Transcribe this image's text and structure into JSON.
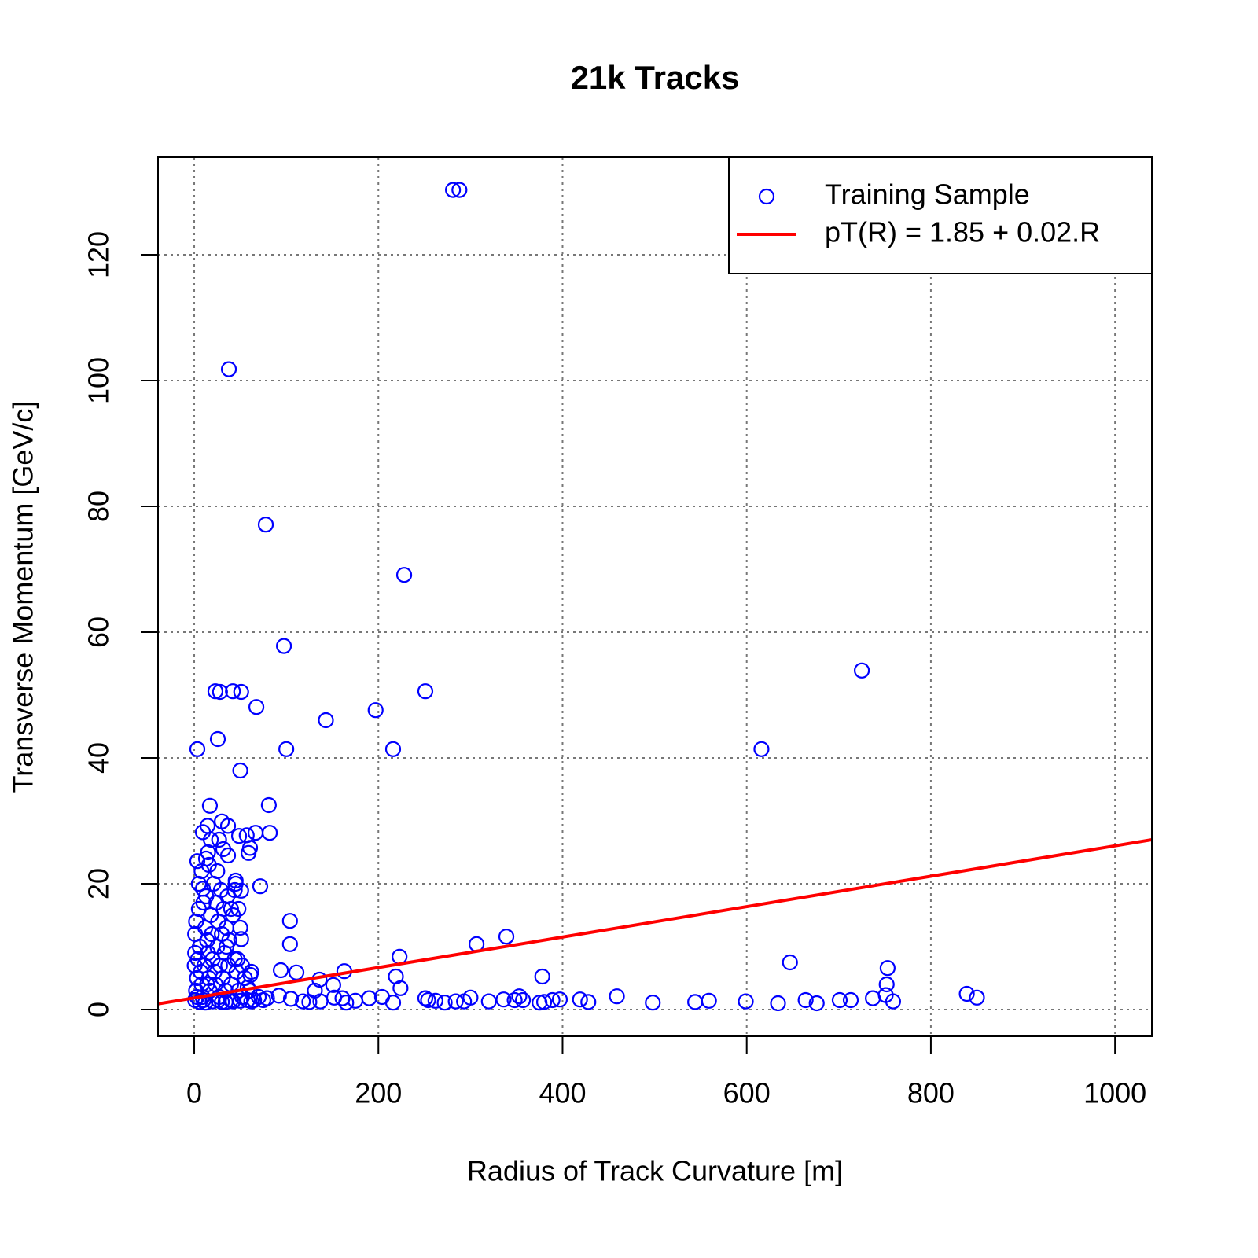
{
  "chart_data": {
    "type": "scatter",
    "title": "21k Tracks",
    "x_label": "Radius of Track Curvature [m]",
    "y_label": "Transverse Momentum [GeV/c]",
    "xlim": [
      -39.3,
      1040
    ],
    "ylim": [
      -4.25,
      135.5
    ],
    "xticks": [
      0,
      200,
      400,
      600,
      800,
      1000
    ],
    "yticks": [
      0,
      20,
      40,
      60,
      80,
      100,
      120
    ],
    "grid": true,
    "legend": "top-right",
    "series": [
      {
        "name": "Training Sample",
        "color": "#0000ff",
        "type": "scatter",
        "x": [
          281,
          288,
          37.6,
          77.7,
          228,
          97.4,
          725,
          23,
          28,
          42,
          51,
          251,
          67.5,
          197,
          143,
          25.6,
          3.4,
          100,
          216,
          616,
          50,
          17,
          81,
          9.4,
          82,
          66.6,
          14.5,
          30,
          36.7,
          48.7,
          57,
          27,
          60.6,
          59,
          31.6,
          36.7,
          3.4,
          12.8,
          16,
          71.7,
          45,
          51,
          9.4,
          104,
          104,
          306.6,
          339,
          223,
          647,
          94,
          111,
          163,
          62,
          753,
          378,
          219,
          224,
          136,
          151,
          752,
          131,
          839,
          850,
          459,
          419,
          397,
          389,
          357,
          353,
          348,
          336,
          320,
          300,
          293,
          284,
          272,
          262,
          251,
          254,
          216,
          204,
          190,
          175,
          165,
          161,
          152,
          137,
          125,
          118,
          105,
          92,
          79,
          498,
          544,
          559,
          599,
          634,
          664,
          676,
          701,
          713,
          737,
          759,
          751,
          428,
          375,
          380,
          2,
          3,
          4,
          1,
          2,
          5,
          6,
          7,
          8,
          9,
          10,
          11,
          12,
          13,
          14,
          15,
          16,
          17,
          18,
          19,
          20,
          21,
          22,
          23,
          24,
          25,
          26,
          27,
          28,
          29,
          30,
          31,
          32,
          33,
          34,
          35,
          36,
          37,
          38,
          40,
          42,
          44,
          45,
          46,
          48,
          50,
          52,
          55,
          58,
          60,
          62,
          65,
          70,
          75,
          1,
          3,
          6,
          12,
          20,
          30,
          40,
          50,
          5,
          8,
          15,
          0.5,
          1,
          10,
          25,
          18,
          40,
          35,
          44,
          51,
          48,
          47,
          58,
          52,
          61,
          26,
          34,
          42,
          14
        ],
        "values": [
          130.3,
          130.3,
          101.8,
          77.1,
          69.1,
          57.8,
          53.9,
          50.6,
          50.5,
          50.6,
          50.5,
          50.6,
          48.1,
          47.6,
          46,
          43,
          41.4,
          41.4,
          41.4,
          41.4,
          38,
          32.4,
          32.5,
          28.2,
          28.1,
          28.1,
          29.2,
          29.9,
          29.2,
          27.6,
          27.7,
          27,
          25.7,
          24.9,
          25.5,
          24.5,
          23.6,
          24,
          23,
          19.6,
          20.5,
          18.9,
          19.2,
          14.1,
          10.4,
          10.4,
          11.6,
          8.4,
          7.5,
          6.25,
          5.9,
          6.1,
          6,
          6.6,
          5.25,
          5.25,
          3.4,
          4.75,
          3.9,
          4,
          3,
          2.5,
          1.9,
          2.1,
          1.6,
          1.6,
          1.5,
          1.5,
          2.1,
          1.5,
          1.6,
          1.3,
          1.9,
          1.3,
          1.3,
          1.1,
          1.4,
          1.8,
          1.5,
          1.1,
          2,
          1.8,
          1.4,
          1.1,
          1.8,
          1.9,
          1.3,
          1.2,
          1.3,
          1.7,
          2.2,
          1.8,
          1.1,
          1.2,
          1.4,
          1.3,
          1,
          1.5,
          1,
          1.5,
          1.5,
          1.8,
          1.3,
          2.3,
          1.2,
          1.1,
          1.2,
          3,
          5,
          8,
          12,
          14,
          16,
          10,
          6,
          4,
          2,
          1.5,
          7,
          13,
          18,
          11,
          9,
          5,
          3,
          15,
          12,
          8,
          20,
          6,
          4,
          17,
          10,
          14,
          2,
          7,
          19,
          12,
          5,
          16,
          9,
          3,
          13,
          18,
          7,
          11,
          4,
          15,
          8,
          20,
          6,
          3,
          13,
          2,
          5,
          1.5,
          3,
          1.3,
          1.5,
          2,
          1.5,
          1.5,
          2,
          1.2,
          1.1,
          1.3,
          1.2,
          1.5,
          1.4,
          20,
          22,
          25,
          7,
          9,
          17,
          22,
          27,
          16,
          10,
          19,
          11.2,
          16,
          8,
          3.5,
          7,
          5.5,
          1.5,
          1.2,
          1.3,
          4
        ]
      },
      {
        "name": "pT(R) = 1.85 + 0.02.R",
        "color": "#ff0000",
        "type": "line",
        "x": [
          -39.3,
          1040
        ],
        "values": [
          0.9,
          27
        ]
      }
    ]
  }
}
